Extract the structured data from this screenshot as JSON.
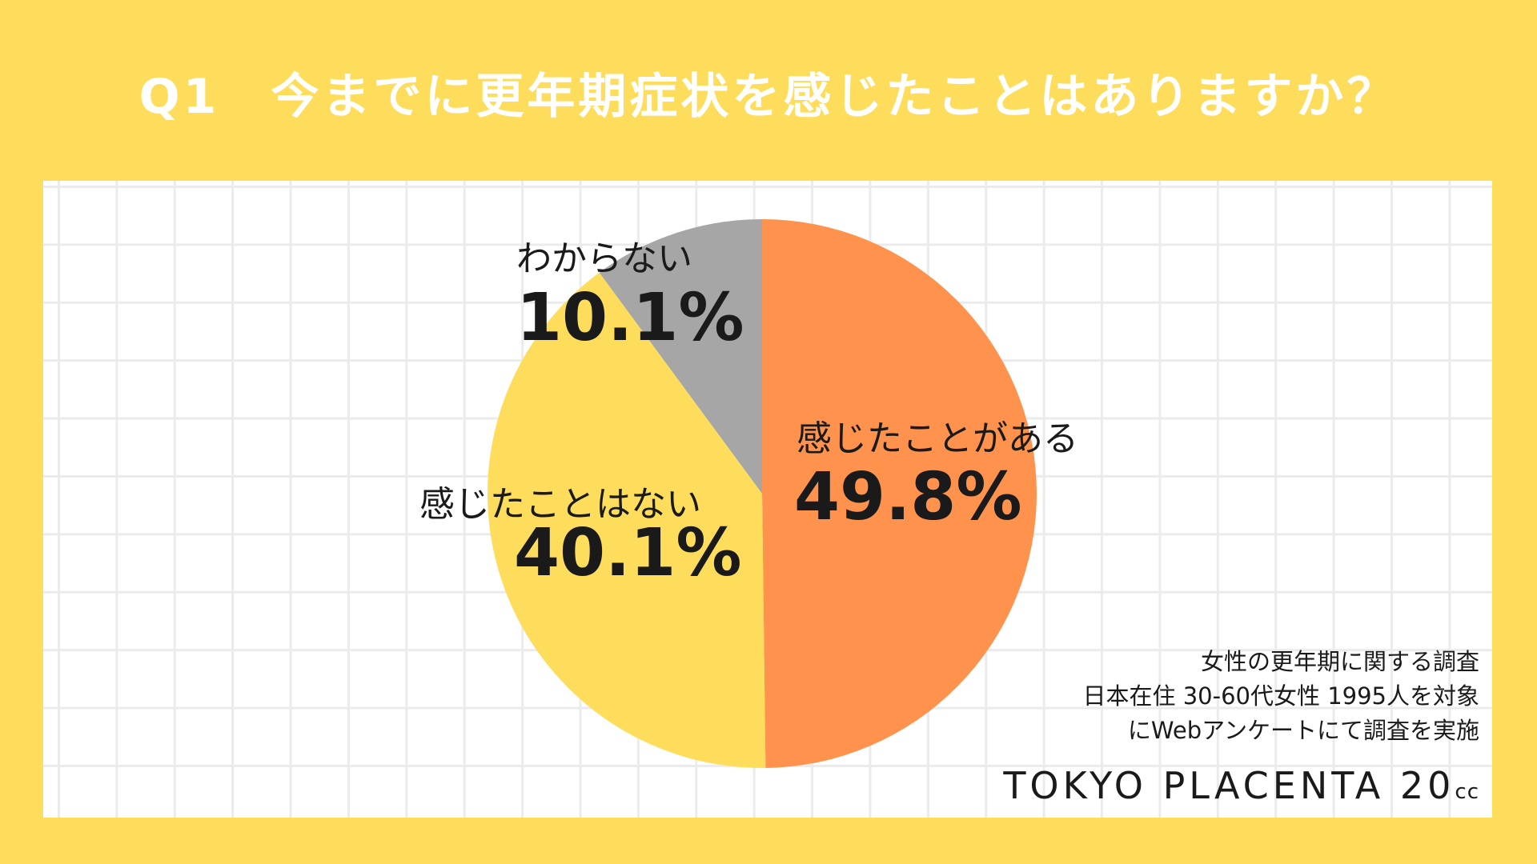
{
  "title": "Q1　今までに更年期症状を感じたことはありますか？",
  "chart_data": {
    "type": "pie",
    "start_angle_deg": 0,
    "direction": "clockwise",
    "slices": [
      {
        "label": "感じたことがある",
        "value": 49.8,
        "display": "49.8%",
        "color": "#FF934E"
      },
      {
        "label": "感じたことはない",
        "value": 40.1,
        "display": "40.1%",
        "color": "#FEDD5C"
      },
      {
        "label": "わからない",
        "value": 10.1,
        "display": "10.1%",
        "color": "#A6A6A6"
      }
    ]
  },
  "source": {
    "line1": "女性の更年期に関する調査",
    "line2": "日本在住 30-60代女性 1995人を対象",
    "line3": "にWebアンケートにて調査を実施"
  },
  "logo": {
    "main": "TOKYO PLACENTA 20",
    "sub": "cc"
  }
}
